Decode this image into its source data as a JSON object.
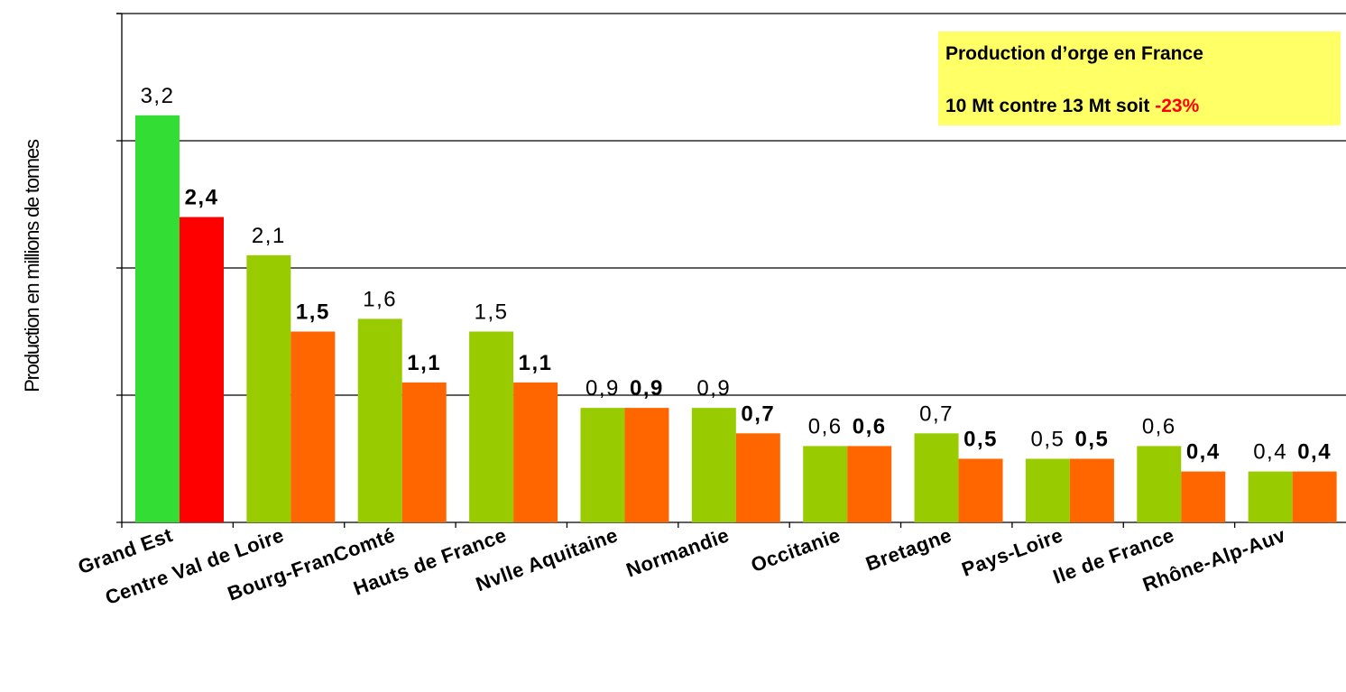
{
  "chart_data": {
    "type": "bar",
    "title": "",
    "ylabel": "Production en millions de tonnes",
    "xlabel": "",
    "ylim": [
      0,
      4
    ],
    "grid": true,
    "categories": [
      "Grand Est",
      "Centre Val de Loire",
      "Bourg-FranComté",
      "Hauts de France",
      "Nvlle Aquitaine",
      "Normandie",
      "Occitanie",
      "Bretagne",
      "Pays-Loire",
      "Ile de France",
      "Rhône-Alp-Auv"
    ],
    "series": [
      {
        "values": [
          3.2,
          2.1,
          1.6,
          1.5,
          0.9,
          0.9,
          0.6,
          0.7,
          0.5,
          0.6,
          0.4
        ],
        "labels": [
          "3,2",
          "2,1",
          "1,6",
          "1,5",
          "0,9",
          "0,9",
          "0,6",
          "0,7",
          "0,5",
          "0,6",
          "0,4"
        ],
        "color": "#99cc00",
        "highlight_color": "#33dd33"
      },
      {
        "values": [
          2.4,
          1.5,
          1.1,
          1.1,
          0.9,
          0.7,
          0.6,
          0.5,
          0.5,
          0.4,
          0.4
        ],
        "labels": [
          "2,4",
          "1,5",
          "1,1",
          "1,1",
          "0,9",
          "0,7",
          "0,6",
          "0,5",
          "0,5",
          "0,4",
          "0,4"
        ],
        "color": "#ff6600",
        "highlight_color": "#ff0000"
      }
    ],
    "annotation": {
      "line1": "Production d’orge en France",
      "line2_prefix": "10 Mt contre 13 Mt soit ",
      "line2_highlight": "-23%",
      "background": "#ffff66",
      "highlight_color": "#ff0000"
    }
  }
}
